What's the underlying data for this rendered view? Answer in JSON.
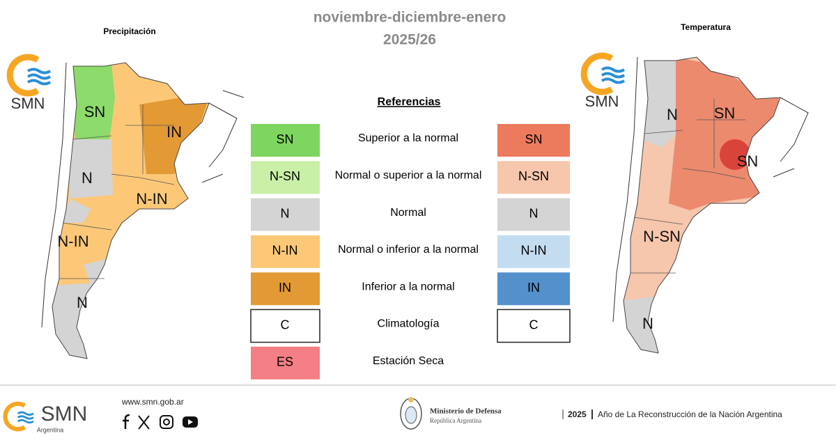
{
  "header": {
    "title": "noviembre-diciembre-enero",
    "subtitle": "2025/26"
  },
  "maps": [
    {
      "title": "Precipitación",
      "logo": "SMN",
      "labels": [
        "SN",
        "N",
        "IN",
        "N-IN",
        "N-IN",
        "N"
      ]
    },
    {
      "title": "Temperatura",
      "logo": "SMN",
      "labels": [
        "N",
        "SN",
        "SN",
        "N-SN",
        "N"
      ]
    }
  ],
  "legend": {
    "title": "Referencias",
    "rows": [
      {
        "label": "SN",
        "text": "Superior a la normal",
        "color": "#7ed660",
        "right_label": "SN",
        "right_color": "#ec7a5c"
      },
      {
        "label": "N-SN",
        "text": "Normal o superior a la normal",
        "color": "#c9f0a6",
        "right_label": "N-SN",
        "right_color": "#f6c6ad"
      },
      {
        "label": "N",
        "text": "Normal",
        "color": "#d4d4d4",
        "right_label": "N",
        "right_color": "#d4d4d4"
      },
      {
        "label": "N-IN",
        "text": "Normal o inferior a la normal",
        "color": "#fcc878",
        "right_label": "N-IN",
        "right_color": "#c4dcf0"
      },
      {
        "label": "IN",
        "text": "Inferior a la normal",
        "color": "#e39a35",
        "right_label": "IN",
        "right_color": "#5490cc"
      },
      {
        "label": "C",
        "text": "Climatología",
        "color": "#ffffff",
        "right_label": "C",
        "right_color": "#ffffff"
      },
      {
        "label": "ES",
        "text": "Estación Seca",
        "color": "#f57f86"
      }
    ]
  },
  "footer": {
    "logo": "SMN",
    "logo_sub": "Argentina",
    "website": "www.smn.gob.ar",
    "ministry": "Ministerio de Defensa",
    "republic": "República Argentina",
    "year": "2025",
    "motto": "Año de La Reconstrucción de la Nación Argentina"
  }
}
